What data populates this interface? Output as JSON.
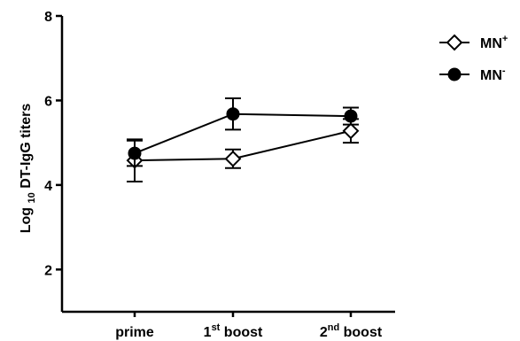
{
  "chart_data": {
    "type": "line",
    "categories": [
      "prime",
      "1st boost",
      "2nd boost"
    ],
    "category_labels": [
      {
        "base": "prime",
        "sup": "",
        "suffix": ""
      },
      {
        "base": "1",
        "sup": "st",
        "suffix": " boost"
      },
      {
        "base": "2",
        "sup": "nd",
        "suffix": " boost"
      }
    ],
    "ylabel": {
      "pre": "Log ",
      "sub": "10",
      "post": " DT-IgG titers"
    },
    "ylim": [
      1,
      8
    ],
    "yticks": [
      2,
      4,
      6,
      8
    ],
    "series": [
      {
        "name": "MN+",
        "label_base": "MN",
        "label_sup": "+",
        "marker": "diamond-open",
        "values": [
          4.58,
          4.62,
          5.28
        ],
        "errors": [
          0.5,
          0.22,
          0.28
        ]
      },
      {
        "name": "MN-",
        "label_base": "MN",
        "label_sup": "-",
        "marker": "circle-filled",
        "values": [
          4.75,
          5.68,
          5.63
        ],
        "errors": [
          0.3,
          0.37,
          0.2
        ]
      }
    ],
    "legend_position": "top-right",
    "grid": false,
    "colors": {
      "line": "#000000",
      "marker_fill_open": "#ffffff",
      "marker_fill_solid": "#000000"
    }
  }
}
